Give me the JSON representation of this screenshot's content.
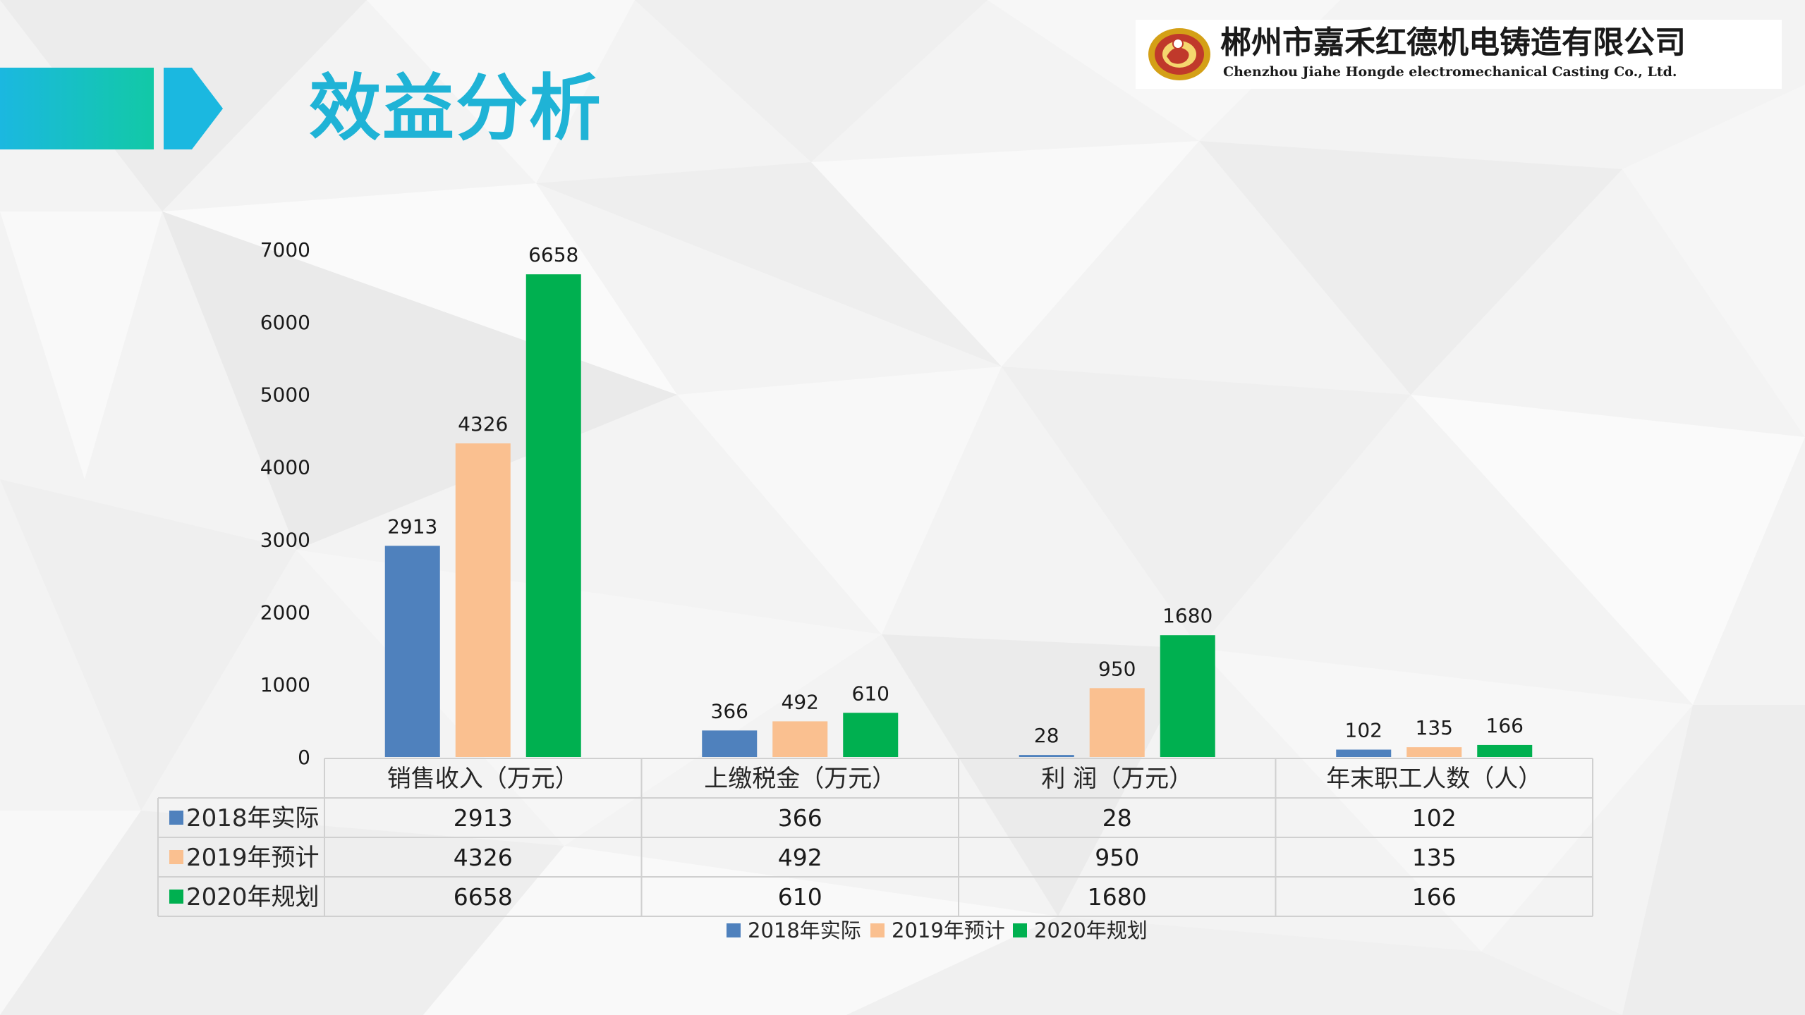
{
  "page": {
    "title": "效益分析"
  },
  "logo": {
    "company_name": "郴州市嘉禾红德机电铸造有限公司",
    "company_name_en": "Chenzhou Jiahe Hongde electromechanical Casting Co., Ltd."
  },
  "colors": {
    "title": "#1fb3d6",
    "band_left": "#1bb8e0",
    "band_right": "#12c9a6",
    "series_2018": "#4f81bd",
    "series_2019": "#fac090",
    "series_2020": "#00b050",
    "grid_border": "#d0d0d0"
  },
  "chart_data": {
    "type": "bar",
    "categories": [
      "销售收入（万元）",
      "上缴税金（万元）",
      "利 润（万元）",
      "年末职工人数（人）"
    ],
    "series": [
      {
        "name": "2018年实际",
        "values": [
          2913,
          366,
          28,
          102
        ]
      },
      {
        "name": "2019年预计",
        "values": [
          4326,
          492,
          950,
          135
        ]
      },
      {
        "name": "2020年规划",
        "values": [
          6658,
          610,
          1680,
          166
        ]
      }
    ],
    "ylim": [
      0,
      7000
    ],
    "yticks": [
      0,
      1000,
      2000,
      3000,
      4000,
      5000,
      6000,
      7000
    ],
    "data_labels": true,
    "data_table": true,
    "legend_position": "bottom",
    "grid": false
  }
}
